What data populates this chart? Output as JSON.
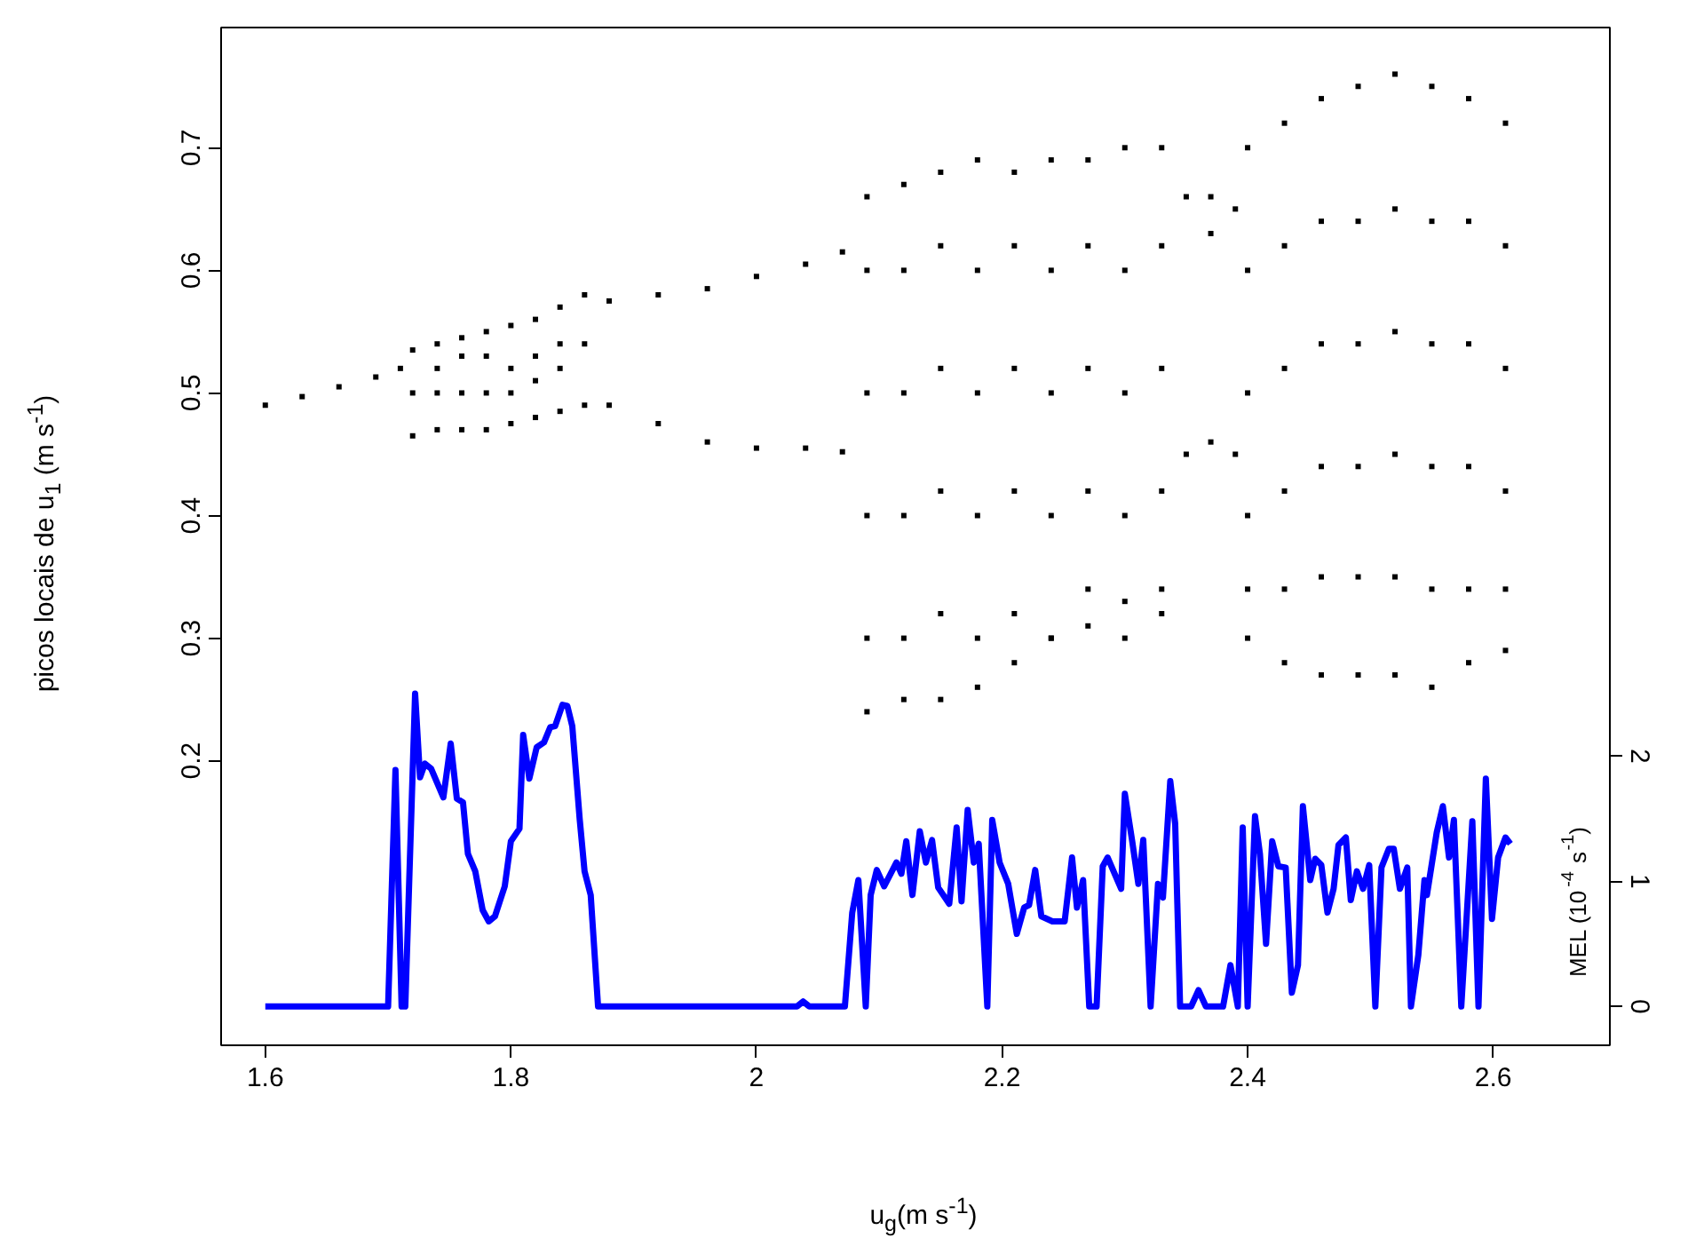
{
  "chart_data": {
    "type": "scatter",
    "xlabel": "u$_{g}$(m s$^{-1}$)",
    "ylabel": "picos locais de u$_{1}$ (m s$^{-1}$)",
    "y2label": "MEL (10$^{-4}$ s$^{-1}$)",
    "xlim": [
      1.564,
      2.695
    ],
    "ylim": [
      -0.032,
      0.798
    ],
    "y2lim": [
      -0.31,
      7.82
    ],
    "xticks": [
      1.6,
      1.8,
      2,
      2.2,
      2.4,
      2.6
    ],
    "yticks": [
      0.2,
      0.3,
      0.4,
      0.5,
      0.6,
      0.7
    ],
    "y2ticks": [
      0,
      1,
      2
    ],
    "grid": false,
    "series": [
      {
        "marker": "square",
        "color": "#000000",
        "x": [
          1.6,
          1.63,
          1.66,
          1.69,
          1.71,
          1.72,
          1.72,
          1.72,
          1.74,
          1.74,
          1.74,
          1.74,
          1.76,
          1.76,
          1.76,
          1.76,
          1.78,
          1.78,
          1.78,
          1.78,
          1.8,
          1.8,
          1.8,
          1.8,
          1.82,
          1.82,
          1.82,
          1.82,
          1.84,
          1.84,
          1.84,
          1.84,
          1.86,
          1.86,
          1.86,
          1.88,
          1.88,
          1.92,
          1.92,
          1.96,
          1.96,
          2.0,
          2.0,
          2.04,
          2.04,
          2.07,
          2.07,
          2.09,
          2.09,
          2.09,
          2.09,
          2.09,
          2.09,
          2.12,
          2.12,
          2.12,
          2.12,
          2.12,
          2.12,
          2.15,
          2.15,
          2.15,
          2.15,
          2.15,
          2.15,
          2.18,
          2.18,
          2.18,
          2.18,
          2.18,
          2.18,
          2.21,
          2.21,
          2.21,
          2.21,
          2.21,
          2.21,
          2.24,
          2.24,
          2.24,
          2.24,
          2.24,
          2.24,
          2.27,
          2.27,
          2.27,
          2.27,
          2.27,
          2.27,
          2.3,
          2.3,
          2.3,
          2.3,
          2.3,
          2.3,
          2.33,
          2.33,
          2.33,
          2.33,
          2.33,
          2.33,
          2.35,
          2.35,
          2.37,
          2.37,
          2.37,
          2.39,
          2.39,
          2.4,
          2.4,
          2.4,
          2.4,
          2.4,
          2.4,
          2.43,
          2.43,
          2.43,
          2.43,
          2.43,
          2.43,
          2.46,
          2.46,
          2.46,
          2.46,
          2.46,
          2.46,
          2.49,
          2.49,
          2.49,
          2.49,
          2.49,
          2.49,
          2.52,
          2.52,
          2.52,
          2.52,
          2.52,
          2.52,
          2.55,
          2.55,
          2.55,
          2.55,
          2.55,
          2.55,
          2.58,
          2.58,
          2.58,
          2.58,
          2.58,
          2.58,
          2.61,
          2.61,
          2.61,
          2.61,
          2.61,
          2.61
        ],
        "values": [
          0.49,
          0.497,
          0.505,
          0.513,
          0.52,
          0.535,
          0.5,
          0.465,
          0.54,
          0.52,
          0.5,
          0.47,
          0.545,
          0.53,
          0.5,
          0.47,
          0.55,
          0.53,
          0.5,
          0.47,
          0.555,
          0.52,
          0.5,
          0.475,
          0.56,
          0.53,
          0.51,
          0.48,
          0.57,
          0.54,
          0.52,
          0.485,
          0.58,
          0.54,
          0.49,
          0.575,
          0.49,
          0.58,
          0.475,
          0.585,
          0.46,
          0.595,
          0.455,
          0.605,
          0.455,
          0.615,
          0.452,
          0.66,
          0.6,
          0.5,
          0.4,
          0.3,
          0.24,
          0.67,
          0.6,
          0.5,
          0.4,
          0.3,
          0.25,
          0.68,
          0.62,
          0.52,
          0.42,
          0.32,
          0.25,
          0.69,
          0.6,
          0.5,
          0.4,
          0.3,
          0.26,
          0.68,
          0.62,
          0.52,
          0.42,
          0.32,
          0.28,
          0.69,
          0.6,
          0.5,
          0.4,
          0.3,
          0.3,
          0.69,
          0.62,
          0.52,
          0.42,
          0.34,
          0.31,
          0.7,
          0.6,
          0.5,
          0.4,
          0.33,
          0.3,
          0.7,
          0.62,
          0.52,
          0.42,
          0.34,
          0.32,
          0.66,
          0.45,
          0.66,
          0.63,
          0.46,
          0.65,
          0.45,
          0.7,
          0.6,
          0.5,
          0.4,
          0.34,
          0.3,
          0.72,
          0.62,
          0.52,
          0.42,
          0.34,
          0.28,
          0.74,
          0.64,
          0.54,
          0.44,
          0.35,
          0.27,
          0.75,
          0.64,
          0.54,
          0.44,
          0.35,
          0.27,
          0.76,
          0.65,
          0.55,
          0.45,
          0.35,
          0.27,
          0.75,
          0.64,
          0.54,
          0.44,
          0.34,
          0.26,
          0.74,
          0.64,
          0.54,
          0.44,
          0.34,
          0.28,
          0.72,
          0.62,
          0.52,
          0.42,
          0.34,
          0.29
        ]
      },
      {
        "type": "line",
        "axis": "y2",
        "color": "#0000ff",
        "x": [
          1.6,
          1.7,
          1.706,
          1.711,
          1.714,
          1.722,
          1.726,
          1.73,
          1.735,
          1.745,
          1.751,
          1.756,
          1.761,
          1.765,
          1.771,
          1.777,
          1.782,
          1.787,
          1.795,
          1.8,
          1.807,
          1.81,
          1.815,
          1.821,
          1.827,
          1.832,
          1.836,
          1.842,
          1.846,
          1.85,
          1.856,
          1.86,
          1.865,
          1.871,
          2.033,
          2.038,
          2.043,
          2.072,
          2.078,
          2.083,
          2.089,
          2.093,
          2.098,
          2.104,
          2.114,
          2.118,
          2.122,
          2.127,
          2.133,
          2.138,
          2.143,
          2.148,
          2.157,
          2.163,
          2.167,
          2.172,
          2.177,
          2.181,
          2.188,
          2.192,
          2.198,
          2.205,
          2.212,
          2.218,
          2.222,
          2.227,
          2.232,
          2.241,
          2.251,
          2.257,
          2.261,
          2.266,
          2.271,
          2.277,
          2.282,
          2.286,
          2.297,
          2.3,
          2.306,
          2.311,
          2.315,
          2.321,
          2.327,
          2.331,
          2.337,
          2.341,
          2.345,
          2.354,
          2.36,
          2.366,
          2.38,
          2.386,
          2.392,
          2.396,
          2.4,
          2.406,
          2.41,
          2.415,
          2.42,
          2.425,
          2.431,
          2.436,
          2.441,
          2.445,
          2.451,
          2.455,
          2.46,
          2.465,
          2.47,
          2.474,
          2.48,
          2.484,
          2.489,
          2.494,
          2.499,
          2.504,
          2.509,
          2.515,
          2.519,
          2.524,
          2.53,
          2.533,
          2.539,
          2.544,
          2.546,
          2.554,
          2.559,
          2.564,
          2.568,
          2.574,
          2.583,
          2.588,
          2.594,
          2.599,
          2.604,
          2.61,
          2.614
        ],
        "values": [
          0,
          0,
          1.89,
          0,
          0,
          2.5,
          1.83,
          1.94,
          1.9,
          1.67,
          2.1,
          1.66,
          1.63,
          1.22,
          1.08,
          0.77,
          0.68,
          0.72,
          0.96,
          1.32,
          1.42,
          2.17,
          1.82,
          2.07,
          2.11,
          2.23,
          2.24,
          2.41,
          2.4,
          2.24,
          1.5,
          1.08,
          0.89,
          0,
          0,
          0.04,
          0,
          0,
          0.75,
          1.01,
          0,
          0.89,
          1.09,
          0.96,
          1.15,
          1.06,
          1.32,
          0.89,
          1.4,
          1.15,
          1.33,
          0.95,
          0.82,
          1.43,
          0.84,
          1.57,
          1.15,
          1.3,
          0,
          1.49,
          1.15,
          0.98,
          0.58,
          0.79,
          0.81,
          1.09,
          0.72,
          0.68,
          0.68,
          1.19,
          0.79,
          1.01,
          0,
          0,
          1.12,
          1.19,
          0.94,
          1.7,
          1.32,
          0.98,
          1.33,
          0,
          0.98,
          0.87,
          1.8,
          1.46,
          0,
          0,
          0.13,
          0,
          0,
          0.33,
          0,
          1.43,
          0,
          1.52,
          1.22,
          0.5,
          1.32,
          1.12,
          1.11,
          0.11,
          0.33,
          1.6,
          1.01,
          1.18,
          1.13,
          0.75,
          0.94,
          1.29,
          1.35,
          0.85,
          1.08,
          0.94,
          1.13,
          0,
          1.11,
          1.26,
          1.26,
          0.94,
          1.11,
          0,
          0.41,
          1.01,
          0.89,
          1.39,
          1.6,
          1.19,
          1.49,
          0,
          1.48,
          0,
          1.82,
          0.7,
          1.19,
          1.35,
          1.3
        ]
      }
    ]
  }
}
